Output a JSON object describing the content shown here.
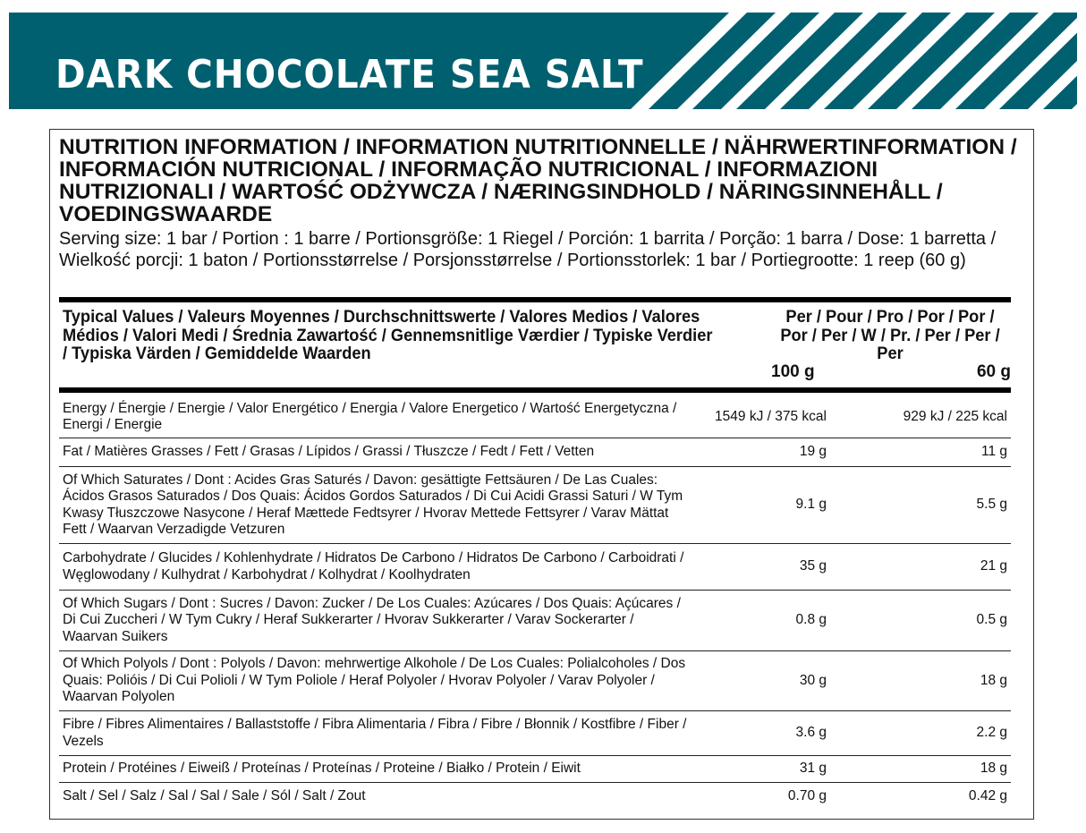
{
  "banner": {
    "title": "DARK CHOCOLATE SEA SALT",
    "color": "#00606f"
  },
  "heading": "NUTRITION INFORMATION / INFORMATION NUTRITIONNELLE / NÄHRWERTINFORMATION / INFORMACIÓN NUTRICIONAL / INFORMAÇÃO NUTRICIONAL / INFORMAZIONI NUTRIZIONALI / WARTOŚĆ ODŻYWCZA / NÆRINGSINDHOLD / NÄRINGSINNEHÅLL / VOEDINGSWAARDE",
  "serving": "Serving size: 1 bar / Portion : 1 barre / Portionsgröße: 1 Riegel / Porción: 1 barrita / Porção: 1 barra / Dose: 1 barretta / Wielkość porcji: 1 baton / Portionsstørrelse / Porsjonsstørrelse / Portionsstorlek: 1 bar /  Portiegrootte: 1 reep (60 g)",
  "table": {
    "header": {
      "typical": "Typical Values / Valeurs Moyennes / Durchschnittswerte / Valores Medios / Valores Médios / Valori Medi / Średnia Zawartość / Gennemsnitlige Værdier / Typiske Verdier / Typiska Värden / Gemiddelde Waarden",
      "per": "Per / Pour / Pro / Por / Por / Por / Per  / W / Pr. / Per / Per / Per",
      "col1": "100 g",
      "col2": "60 g"
    },
    "rows": [
      {
        "name": "Energy / Énergie / Energie / Valor Energético / Energia / Valore Energetico / Wartość Energetyczna / Energi / Energie",
        "per100": "1549 kJ / 375 kcal",
        "per60": "929 kJ / 225 kcal"
      },
      {
        "name": "Fat / Matières Grasses / Fett / Grasas / Lípidos / Grassi / Tłuszcze / Fedt / Fett / Vetten",
        "per100": "19 g",
        "per60": "11 g"
      },
      {
        "name": "Of Which Saturates / Dont : Acides Gras Saturés / Davon: gesättigte Fettsäuren / De Las Cuales: Ácidos Grasos Saturados / Dos Quais: Ácidos Gordos Saturados / Di Cui Acidi Grassi Saturi / W Tym Kwasy Tłuszczowe Nasycone / Heraf Mættede Fedtsyrer / Hvorav Mettede Fettsyrer / Varav Mättat Fett / Waarvan Verzadigde Vetzuren",
        "per100": "9.1 g",
        "per60": "5.5 g"
      },
      {
        "name": "Carbohydrate / Glucides / Kohlenhydrate / Hidratos De Carbono / Hidratos De Carbono / Carboidrati / Węglowodany / Kulhydrat / Karbohydrat / Kolhydrat / Koolhydraten",
        "per100": "35 g",
        "per60": "21 g"
      },
      {
        "name": "Of Which Sugars / Dont : Sucres / Davon: Zucker / De Los Cuales: Azúcares / Dos Quais: Açúcares / Di Cui Zuccheri / W Tym Cukry / Heraf Sukkerarter / Hvorav Sukkerarter / Varav Sockerarter / Waarvan Suikers",
        "per100": "0.8 g",
        "per60": "0.5 g"
      },
      {
        "name": "Of Which Polyols / Dont : Polyols / Davon: mehrwertige Alkohole / De Los Cuales: Polialcoholes / Dos Quais: Polióis / Di Cui Polioli / W Tym Poliole / Heraf Polyoler / Hvorav Polyoler / Varav Polyoler / Waarvan Polyolen",
        "per100": "30 g",
        "per60": "18 g"
      },
      {
        "name": "Fibre / Fibres Alimentaires / Ballaststoffe / Fibra Alimentaria / Fibra / Fibre / Błonnik / Kostfibre / Fiber / Vezels",
        "per100": "3.6 g",
        "per60": "2.2 g"
      },
      {
        "name": "Protein / Protéines / Eiweiß / Proteínas / Proteínas / Proteine / Białko / Protein / Eiwit",
        "per100": "31 g",
        "per60": "18 g"
      },
      {
        "name": "Salt / Sel / Salz / Sal / Sal / Sale / Sól / Salt / Zout",
        "per100": "0.70 g",
        "per60": "0.42 g"
      }
    ]
  }
}
